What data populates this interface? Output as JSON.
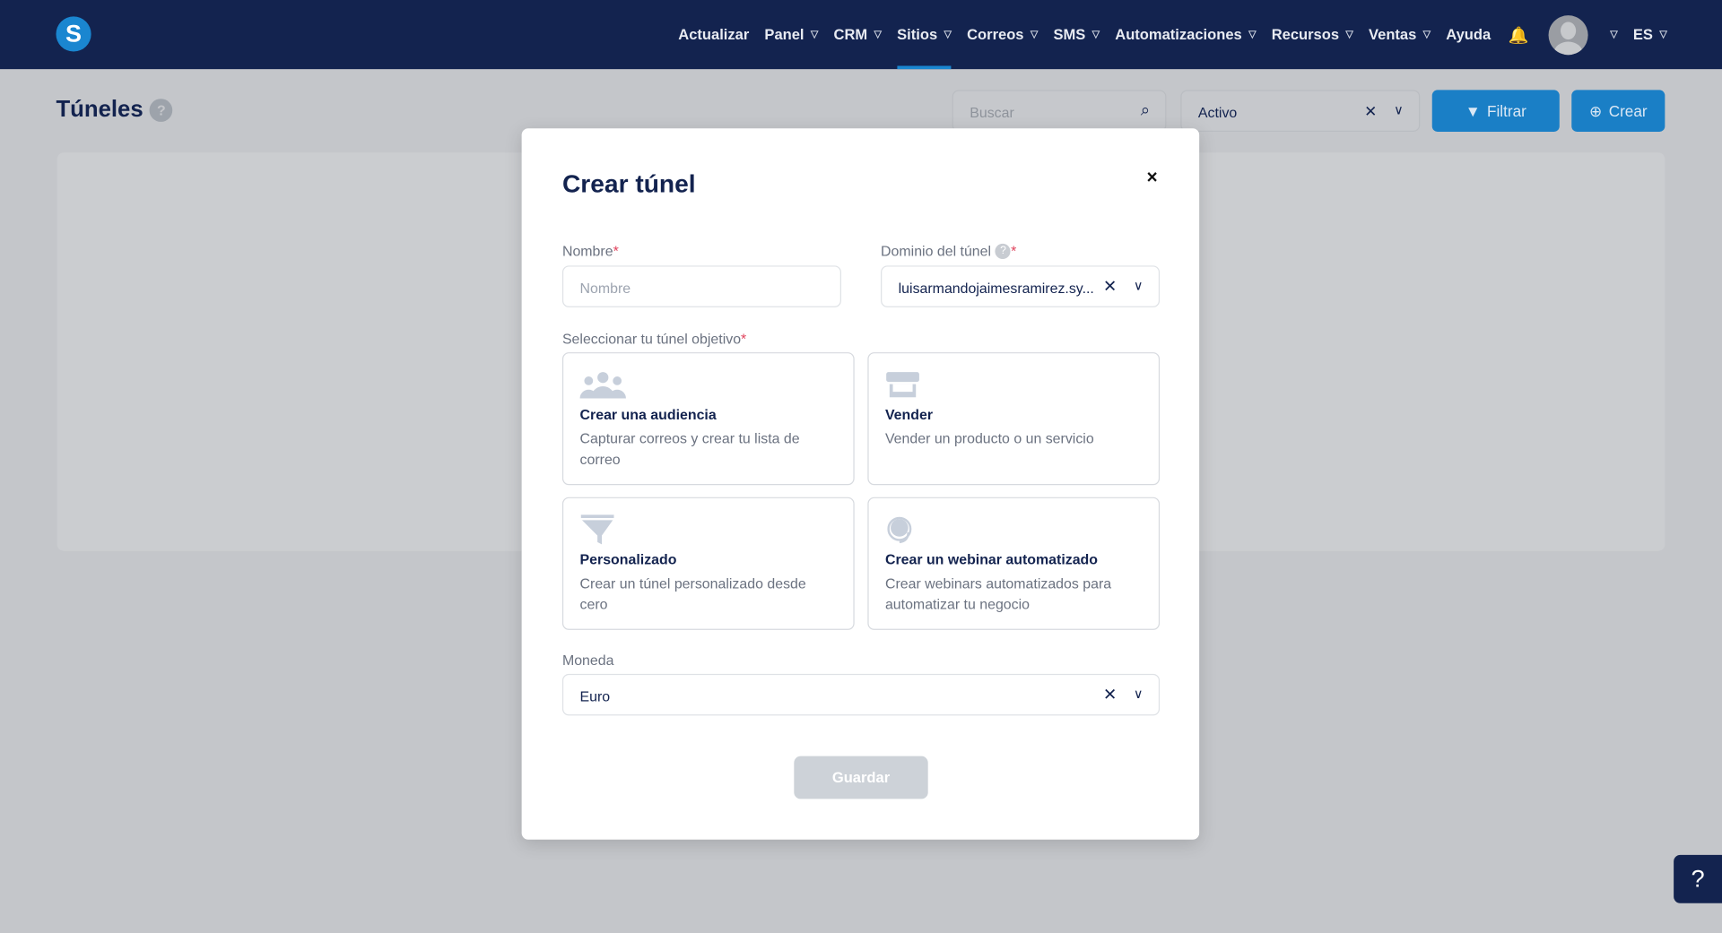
{
  "nav": {
    "logo": "S",
    "items": [
      {
        "label": "Actualizar",
        "dropdown": false
      },
      {
        "label": "Panel",
        "dropdown": true
      },
      {
        "label": "CRM",
        "dropdown": true
      },
      {
        "label": "Sitios",
        "dropdown": true,
        "active": true
      },
      {
        "label": "Correos",
        "dropdown": true
      },
      {
        "label": "SMS",
        "dropdown": true
      },
      {
        "label": "Automatizaciones",
        "dropdown": true
      },
      {
        "label": "Recursos",
        "dropdown": true
      },
      {
        "label": "Ventas",
        "dropdown": true
      },
      {
        "label": "Ayuda",
        "dropdown": false
      }
    ],
    "language": "ES"
  },
  "page": {
    "title": "Túneles",
    "help": "?",
    "search_placeholder": "Buscar",
    "status_value": "Activo",
    "filter_label": "Filtrar",
    "create_label": "Crear"
  },
  "modal": {
    "title": "Crear túnel",
    "close": "×",
    "name_label": "Nombre",
    "name_placeholder": "Nombre",
    "name_value": "",
    "domain_label": "Dominio del túnel",
    "domain_value": "luisarmandojaimesramirez.sy...",
    "goal_label": "Seleccionar tu túnel objetivo",
    "options": [
      {
        "icon": "audience-icon",
        "title": "Crear una audiencia",
        "desc": "Capturar correos y crear tu lista de correo"
      },
      {
        "icon": "store-icon",
        "title": "Vender",
        "desc": "Vender un producto o un servicio"
      },
      {
        "icon": "funnel-icon",
        "title": "Personalizado",
        "desc": "Crear un túnel personalizado desde cero"
      },
      {
        "icon": "webinar-headset-icon",
        "title": "Crear un webinar automatizado",
        "desc": "Crear webinars automatizados para automatizar tu negocio"
      }
    ],
    "currency_label": "Moneda",
    "currency_value": "Euro",
    "save_label": "Guardar",
    "required_mark": "*"
  },
  "help_widget": "?",
  "colors": {
    "nav": "#13234f",
    "accent": "#1a86d0",
    "required": "#e0405a"
  }
}
